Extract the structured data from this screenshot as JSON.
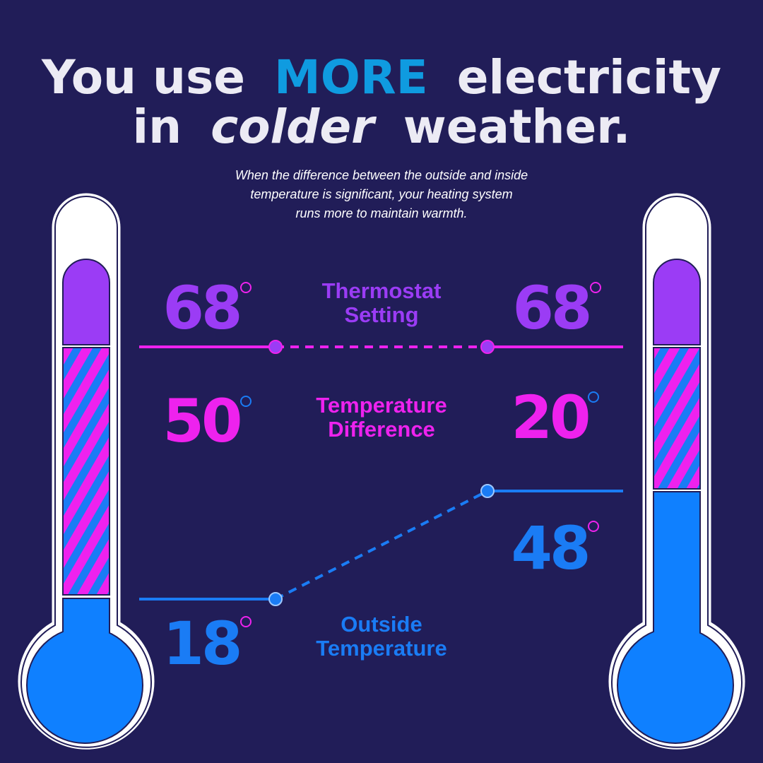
{
  "header": {
    "title": {
      "line1": [
        "You use",
        "MORE",
        "electricity"
      ],
      "line2": [
        "in",
        "colder",
        "weather."
      ]
    },
    "subtitle": [
      "When the difference between the outside and inside",
      "temperature is significant, your heating system",
      "runs more to maintain warmth."
    ]
  },
  "rows": [
    {
      "label": [
        "Thermostat",
        "Setting"
      ],
      "left": 68,
      "right": 68
    },
    {
      "label": [
        "Temperature",
        "Difference"
      ],
      "left": 50,
      "right": 20
    },
    {
      "label": [
        "Outside",
        "Temperature"
      ],
      "left": 18,
      "right": 48
    }
  ]
}
